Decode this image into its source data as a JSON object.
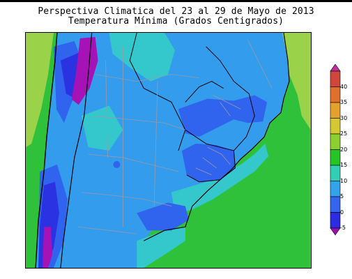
{
  "title": {
    "line1": "Perspectiva Climatica del 23 al 29 de Mayo de 2013",
    "line2": "Temperatura Mínima (Grados Centigrados)"
  },
  "colorbar": {
    "labels": [
      "40",
      "35",
      "30",
      "25",
      "20",
      "15",
      "10",
      "5",
      "0",
      "-5"
    ],
    "colors": [
      "#c0309c",
      "#d0463a",
      "#e0702a",
      "#e4a12c",
      "#d6c832",
      "#8ccf2f",
      "#24c524",
      "#30cfb6",
      "#33a3ec",
      "#3365ee",
      "#2b2be0",
      "#9b10b0"
    ]
  },
  "legend_colors": {
    "ocean": "#2fc13a",
    "land_light_green": "#9ad34a",
    "cyan": "#34c8cc",
    "light_blue": "#349cec",
    "blue": "#3063ee",
    "dark_blue": "#2a32e2",
    "purple": "#a512b6"
  }
}
